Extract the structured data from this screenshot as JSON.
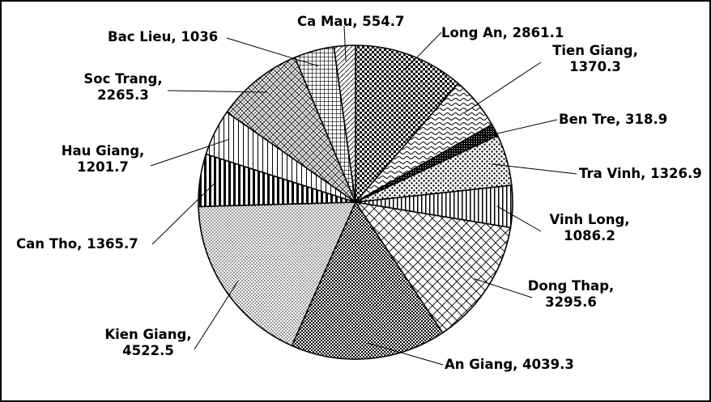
{
  "chart_data": {
    "type": "pie",
    "title": "",
    "start_angle_deg": 0,
    "direction": "clockwise",
    "legend": "none",
    "colors": {
      "ink": "#000000",
      "background": "#ffffff"
    },
    "slices": [
      {
        "label": "Long An",
        "value": 2861.1,
        "value_text": "2861.1",
        "pattern": "checker-dense"
      },
      {
        "label": "Tien Giang",
        "value": 1370.3,
        "value_text": "1370.3",
        "pattern": "waves"
      },
      {
        "label": "Ben Tre",
        "value": 318.9,
        "value_text": "318.9",
        "pattern": "dark-cross"
      },
      {
        "label": "Tra Vinh",
        "value": 1326.9,
        "value_text": "1326.9",
        "pattern": "dots-large"
      },
      {
        "label": "Vinh Long",
        "value": 1086.2,
        "value_text": "1086.2",
        "pattern": "vertical-lines"
      },
      {
        "label": "Dong Thap",
        "value": 3295.6,
        "value_text": "3295.6",
        "pattern": "diagonal-cross"
      },
      {
        "label": "An Giang",
        "value": 4039.3,
        "value_text": "4039.3",
        "pattern": "checker-small"
      },
      {
        "label": "Kien Giang",
        "value": 4522.5,
        "value_text": "4522.5",
        "pattern": "dots-fine"
      },
      {
        "label": "Can Tho",
        "value": 1365.7,
        "value_text": "1365.7",
        "pattern": "vertical-bold"
      },
      {
        "label": "Hau Giang",
        "value": 1201.7,
        "value_text": "1201.7",
        "pattern": "vertical-thin"
      },
      {
        "label": "Soc Trang",
        "value": 2265.3,
        "value_text": "2265.3",
        "pattern": "diamond-grid"
      },
      {
        "label": "Bac Lieu",
        "value": 1036,
        "value_text": "1036",
        "pattern": "square-grid"
      },
      {
        "label": "Ca Mau",
        "value": 554.7,
        "value_text": "554.7",
        "pattern": "diagonal-light"
      }
    ]
  }
}
